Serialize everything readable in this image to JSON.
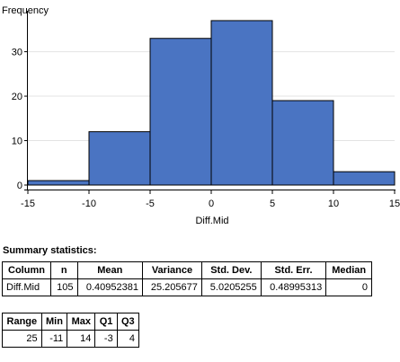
{
  "chart_data": {
    "type": "bar",
    "ylabel": "Frequency",
    "xlabel": "Diff.Mid",
    "bins": [
      {
        "start": -15,
        "end": -10,
        "count": 1
      },
      {
        "start": -10,
        "end": -5,
        "count": 12
      },
      {
        "start": -5,
        "end": 0,
        "count": 33
      },
      {
        "start": 0,
        "end": 5,
        "count": 37
      },
      {
        "start": 5,
        "end": 10,
        "count": 19
      },
      {
        "start": 10,
        "end": 15,
        "count": 3
      }
    ],
    "xlim": [
      -15,
      15
    ],
    "ylim": [
      0,
      38
    ],
    "xticks": [
      -15,
      -10,
      -5,
      0,
      5,
      10,
      15
    ],
    "yticks": [
      0,
      10,
      20,
      30
    ],
    "bar_color": "#4a74c2",
    "grid": true
  },
  "summary": {
    "title": "Summary statistics:",
    "table1": {
      "headers": [
        "Column",
        "n",
        "Mean",
        "Variance",
        "Std. Dev.",
        "Std. Err.",
        "Median"
      ],
      "row": [
        "Diff.Mid",
        "105",
        "0.40952381",
        "25.205677",
        "5.0205255",
        "0.48995313",
        "0"
      ]
    },
    "table2": {
      "headers": [
        "Range",
        "Min",
        "Max",
        "Q1",
        "Q3"
      ],
      "row": [
        "25",
        "-11",
        "14",
        "-3",
        "4"
      ]
    }
  }
}
